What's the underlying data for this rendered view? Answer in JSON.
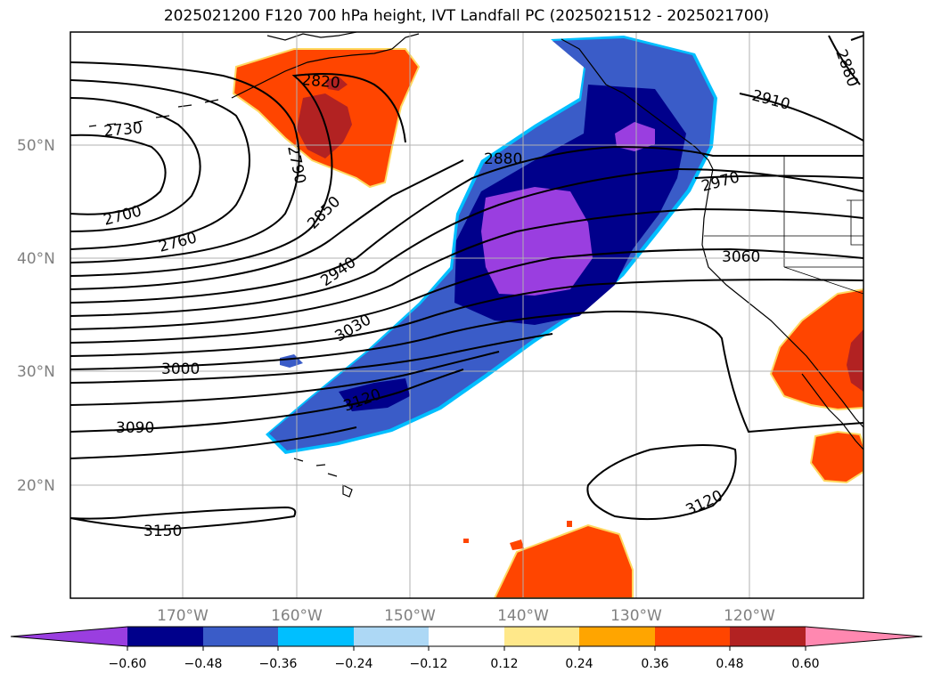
{
  "title": "2025021200 F120 700 hPa height, IVT Landfall PC (2025021512 - 2025021700)",
  "lat_labels": [
    "50°N",
    "40°N",
    "30°N",
    "20°N"
  ],
  "lon_labels": [
    "170°W",
    "160°W",
    "150°W",
    "140°W",
    "130°W",
    "120°W"
  ],
  "contour_labels": [
    "2820",
    "2730",
    "2790",
    "2700",
    "2760",
    "2850",
    "2880",
    "2910",
    "2880",
    "2970",
    "2940",
    "3030",
    "3060",
    "3000",
    "3120",
    "3090",
    "3150",
    "3120"
  ],
  "colorbar": {
    "tick_labels": [
      "−0.60",
      "−0.48",
      "−0.36",
      "−0.24",
      "−0.12",
      "0.12",
      "0.24",
      "0.36",
      "0.48",
      "0.60"
    ],
    "colors": [
      "#9a3ee0",
      "#00008b",
      "#3a5cc8",
      "#00bfff",
      "#add8f5",
      "#ffffff",
      "#ffe88a",
      "#ffa500",
      "#ff4500",
      "#b22222",
      "#ff88b0"
    ]
  },
  "colors": {
    "land_outline": "#000000",
    "grid": "#b0b0b0",
    "contour": "#000000"
  }
}
